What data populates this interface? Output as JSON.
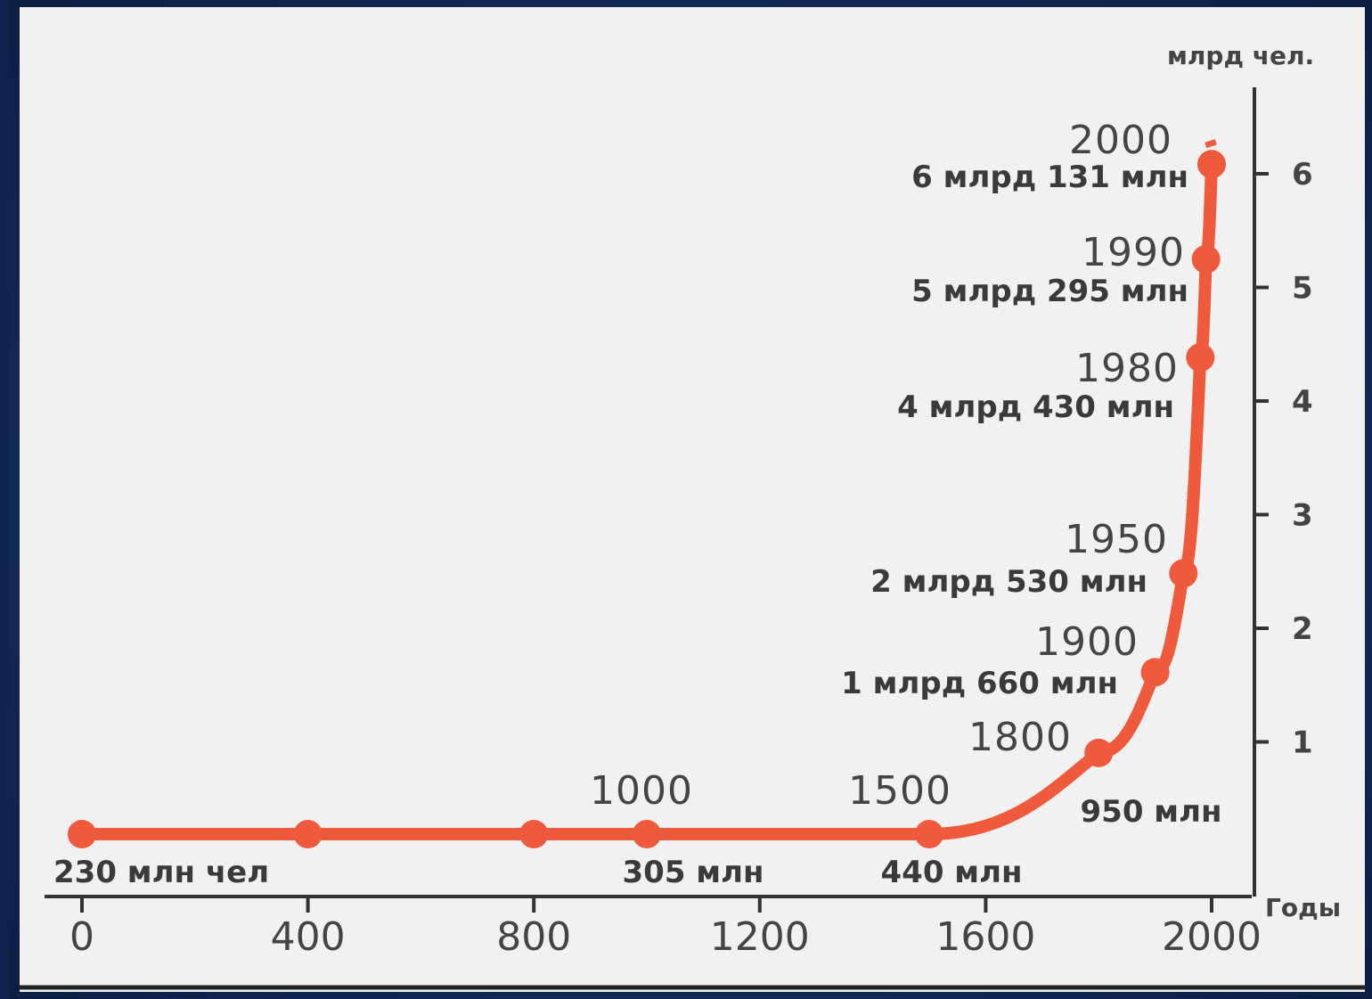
{
  "chart_data": {
    "type": "line",
    "title": "",
    "xlabel": "Годы",
    "ylabel": "млрд чел.",
    "xlim": [
      0,
      2000
    ],
    "ylim": [
      0,
      6.5
    ],
    "x_ticks": [
      "0",
      "400",
      "800",
      "1200",
      "1600",
      "2000"
    ],
    "y_ticks": [
      "1",
      "2",
      "3",
      "4",
      "5",
      "6"
    ],
    "line_color": "#ef5a3c",
    "series": [
      {
        "points": [
          {
            "x": 0,
            "y": 0.23,
            "year_label": "",
            "value_label": "230 млн чел"
          },
          {
            "x": 400,
            "y": 0.24,
            "year_label": "",
            "value_label": ""
          },
          {
            "x": 800,
            "y": 0.24,
            "year_label": "",
            "value_label": ""
          },
          {
            "x": 1000,
            "y": 0.305,
            "year_label": "1000",
            "value_label": "305 млн"
          },
          {
            "x": 1500,
            "y": 0.44,
            "year_label": "1500",
            "value_label": "440 млн"
          },
          {
            "x": 1800,
            "y": 0.95,
            "year_label": "1800",
            "value_label": "950 млн"
          },
          {
            "x": 1900,
            "y": 1.66,
            "year_label": "1900",
            "value_label": "1 млрд 660 млн"
          },
          {
            "x": 1950,
            "y": 2.53,
            "year_label": "1950",
            "value_label": "2 млрд 530 млн"
          },
          {
            "x": 1980,
            "y": 4.43,
            "year_label": "1980",
            "value_label": "4 млрд 430 млн"
          },
          {
            "x": 1990,
            "y": 5.295,
            "year_label": "1990",
            "value_label": "5 млрд 295 млн"
          },
          {
            "x": 2000,
            "y": 6.131,
            "year_label": "2000",
            "value_label": "6 млрд 131 млн"
          }
        ]
      }
    ]
  }
}
